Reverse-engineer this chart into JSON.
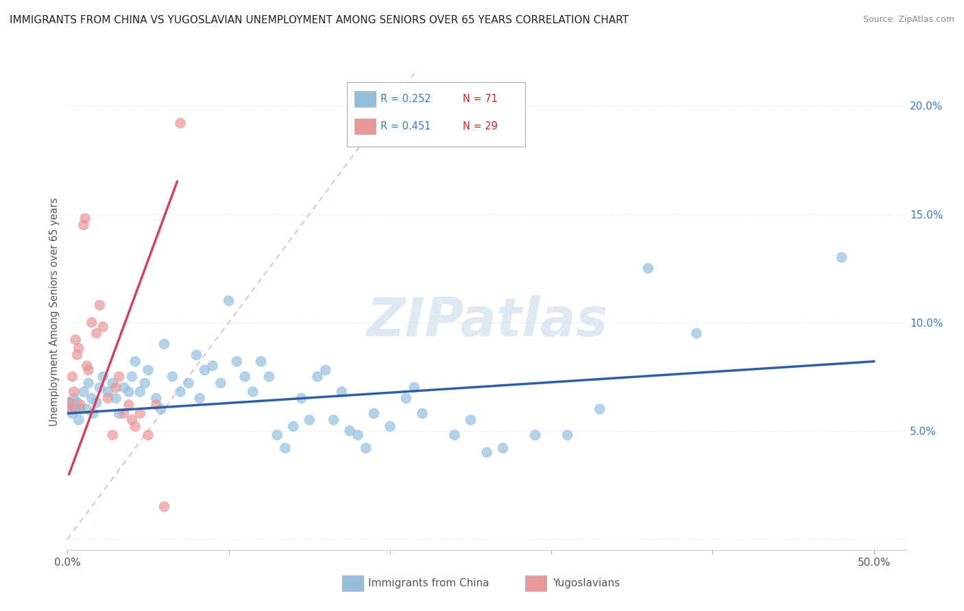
{
  "title": "IMMIGRANTS FROM CHINA VS YUGOSLAVIAN UNEMPLOYMENT AMONG SENIORS OVER 65 YEARS CORRELATION CHART",
  "source": "Source: ZipAtlas.com",
  "ylabel": "Unemployment Among Seniors over 65 years",
  "y_ticks": [
    0.0,
    0.05,
    0.1,
    0.15,
    0.2
  ],
  "y_tick_labels": [
    "",
    "5.0%",
    "10.0%",
    "15.0%",
    "20.0%"
  ],
  "x_ticks": [
    0.0,
    0.1,
    0.2,
    0.3,
    0.4,
    0.5
  ],
  "x_tick_labels": [
    "0.0%",
    "",
    "",
    "",
    "",
    "50.0%"
  ],
  "xlim": [
    0.0,
    0.52
  ],
  "ylim": [
    -0.005,
    0.215
  ],
  "scatter_color_blue": "#93bfdd",
  "scatter_color_pink": "#e89898",
  "line_color_blue": "#2e5fa3",
  "line_color_pink": "#d44060",
  "dash_color": "#ddaaaa",
  "background_color": "#ffffff",
  "grid_color": "#e8e8e8",
  "blue_scatter": [
    [
      0.001,
      0.063
    ],
    [
      0.002,
      0.061
    ],
    [
      0.003,
      0.058
    ],
    [
      0.004,
      0.065
    ],
    [
      0.005,
      0.06
    ],
    [
      0.006,
      0.063
    ],
    [
      0.007,
      0.055
    ],
    [
      0.008,
      0.06
    ],
    [
      0.01,
      0.068
    ],
    [
      0.012,
      0.06
    ],
    [
      0.013,
      0.072
    ],
    [
      0.015,
      0.065
    ],
    [
      0.016,
      0.058
    ],
    [
      0.018,
      0.063
    ],
    [
      0.02,
      0.07
    ],
    [
      0.022,
      0.075
    ],
    [
      0.025,
      0.068
    ],
    [
      0.028,
      0.072
    ],
    [
      0.03,
      0.065
    ],
    [
      0.032,
      0.058
    ],
    [
      0.035,
      0.07
    ],
    [
      0.038,
      0.068
    ],
    [
      0.04,
      0.075
    ],
    [
      0.042,
      0.082
    ],
    [
      0.045,
      0.068
    ],
    [
      0.048,
      0.072
    ],
    [
      0.05,
      0.078
    ],
    [
      0.055,
      0.065
    ],
    [
      0.058,
      0.06
    ],
    [
      0.06,
      0.09
    ],
    [
      0.065,
      0.075
    ],
    [
      0.07,
      0.068
    ],
    [
      0.075,
      0.072
    ],
    [
      0.08,
      0.085
    ],
    [
      0.082,
      0.065
    ],
    [
      0.085,
      0.078
    ],
    [
      0.09,
      0.08
    ],
    [
      0.095,
      0.072
    ],
    [
      0.1,
      0.11
    ],
    [
      0.105,
      0.082
    ],
    [
      0.11,
      0.075
    ],
    [
      0.115,
      0.068
    ],
    [
      0.12,
      0.082
    ],
    [
      0.125,
      0.075
    ],
    [
      0.13,
      0.048
    ],
    [
      0.135,
      0.042
    ],
    [
      0.14,
      0.052
    ],
    [
      0.145,
      0.065
    ],
    [
      0.15,
      0.055
    ],
    [
      0.155,
      0.075
    ],
    [
      0.16,
      0.078
    ],
    [
      0.165,
      0.055
    ],
    [
      0.17,
      0.068
    ],
    [
      0.175,
      0.05
    ],
    [
      0.18,
      0.048
    ],
    [
      0.185,
      0.042
    ],
    [
      0.19,
      0.058
    ],
    [
      0.2,
      0.052
    ],
    [
      0.21,
      0.065
    ],
    [
      0.215,
      0.07
    ],
    [
      0.22,
      0.058
    ],
    [
      0.24,
      0.048
    ],
    [
      0.25,
      0.055
    ],
    [
      0.26,
      0.04
    ],
    [
      0.27,
      0.042
    ],
    [
      0.29,
      0.048
    ],
    [
      0.31,
      0.048
    ],
    [
      0.33,
      0.06
    ],
    [
      0.36,
      0.125
    ],
    [
      0.39,
      0.095
    ],
    [
      0.48,
      0.13
    ]
  ],
  "pink_scatter": [
    [
      0.001,
      0.063
    ],
    [
      0.002,
      0.06
    ],
    [
      0.003,
      0.075
    ],
    [
      0.004,
      0.068
    ],
    [
      0.005,
      0.092
    ],
    [
      0.006,
      0.085
    ],
    [
      0.007,
      0.088
    ],
    [
      0.008,
      0.062
    ],
    [
      0.01,
      0.145
    ],
    [
      0.011,
      0.148
    ],
    [
      0.012,
      0.08
    ],
    [
      0.013,
      0.078
    ],
    [
      0.015,
      0.1
    ],
    [
      0.018,
      0.095
    ],
    [
      0.02,
      0.108
    ],
    [
      0.022,
      0.098
    ],
    [
      0.025,
      0.065
    ],
    [
      0.028,
      0.048
    ],
    [
      0.03,
      0.07
    ],
    [
      0.032,
      0.075
    ],
    [
      0.035,
      0.058
    ],
    [
      0.038,
      0.062
    ],
    [
      0.04,
      0.055
    ],
    [
      0.042,
      0.052
    ],
    [
      0.045,
      0.058
    ],
    [
      0.05,
      0.048
    ],
    [
      0.055,
      0.062
    ],
    [
      0.06,
      0.015
    ],
    [
      0.07,
      0.192
    ]
  ],
  "blue_line": [
    [
      0.0,
      0.058
    ],
    [
      0.5,
      0.082
    ]
  ],
  "pink_line": [
    [
      0.001,
      0.03
    ],
    [
      0.068,
      0.165
    ]
  ],
  "diag_line": [
    [
      0.0,
      0.0
    ],
    [
      0.215,
      0.215
    ]
  ]
}
